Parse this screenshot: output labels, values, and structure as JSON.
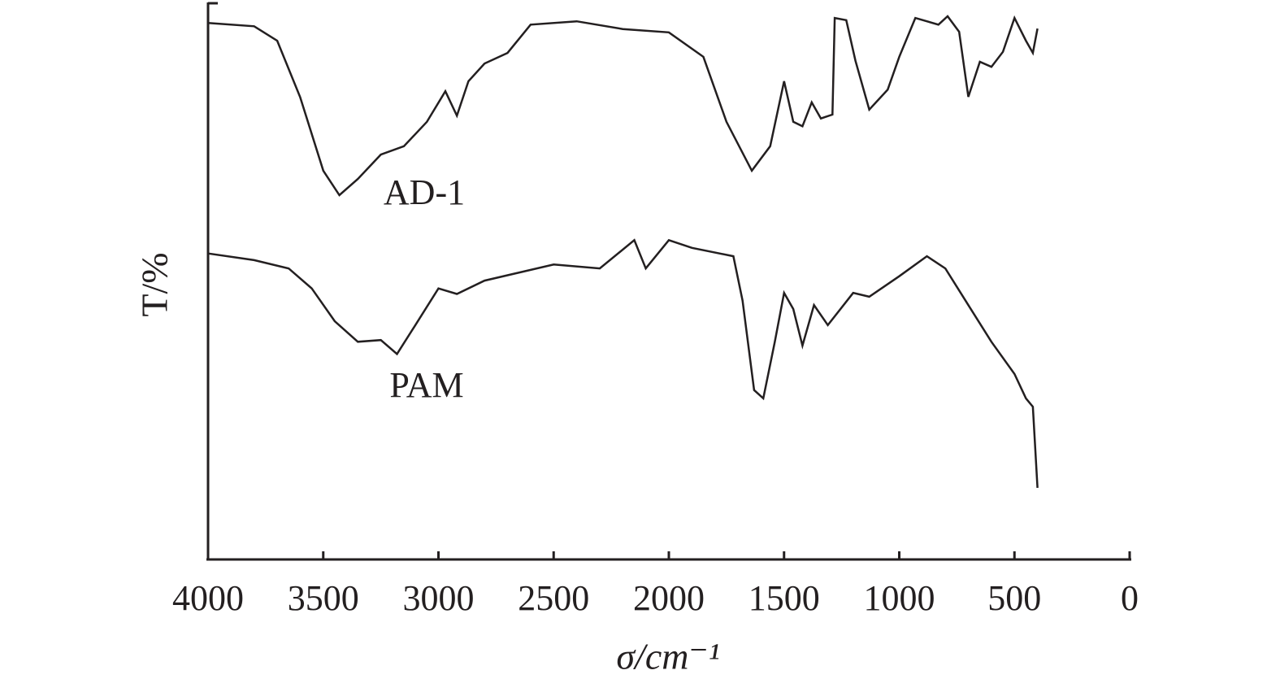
{
  "chart_data": {
    "type": "line",
    "x_label": "σ/cm⁻¹",
    "y_label": "T/%",
    "xlim": [
      4000,
      0
    ],
    "xticks": [
      4000,
      3500,
      3000,
      2500,
      2000,
      1500,
      1000,
      500,
      0
    ],
    "ylim": [
      0,
      100
    ],
    "annotations": [
      "AD-1",
      "PAM"
    ],
    "series": [
      {
        "name": "AD-1",
        "color": "#231f20",
        "x": [
          4000,
          3800,
          3700,
          3600,
          3500,
          3430,
          3350,
          3250,
          3150,
          3050,
          2970,
          2920,
          2870,
          2800,
          2700,
          2600,
          2400,
          2200,
          2000,
          1850,
          1750,
          1640,
          1560,
          1500,
          1460,
          1420,
          1380,
          1340,
          1290,
          1280,
          1230,
          1190,
          1130,
          1050,
          1000,
          930,
          830,
          790,
          740,
          700,
          650,
          600,
          550,
          500,
          450,
          420,
          400
        ],
        "values": [
          96.6,
          96.0,
          93.4,
          83.2,
          70.0,
          65.6,
          68.5,
          72.9,
          74.4,
          78.8,
          84.3,
          79.9,
          86.1,
          89.3,
          91.2,
          96.3,
          96.9,
          95.5,
          94.9,
          90.5,
          78.8,
          70.0,
          74.4,
          86.1,
          78.8,
          78.0,
          82.3,
          79.4,
          80.1,
          97.5,
          97.1,
          89.8,
          81.0,
          84.6,
          90.5,
          97.5,
          96.3,
          97.8,
          95.0,
          83.3,
          89.6,
          88.7,
          91.4,
          97.5,
          93.4,
          91.2,
          95.6
        ]
      },
      {
        "name": "PAM",
        "color": "#231f20",
        "x": [
          4000,
          3800,
          3650,
          3550,
          3450,
          3350,
          3250,
          3180,
          3100,
          3000,
          2920,
          2800,
          2500,
          2300,
          2150,
          2100,
          2000,
          1900,
          1720,
          1680,
          1630,
          1590,
          1540,
          1500,
          1460,
          1420,
          1370,
          1310,
          1200,
          1130,
          1000,
          880,
          800,
          700,
          600,
          500,
          450,
          420,
          400
        ],
        "values": [
          55.1,
          53.9,
          52.4,
          48.8,
          42.9,
          39.2,
          39.5,
          37.0,
          42.2,
          48.8,
          47.8,
          50.2,
          53.1,
          52.4,
          57.5,
          52.4,
          57.5,
          56.1,
          54.6,
          46.6,
          30.5,
          29.0,
          39.2,
          48.0,
          45.1,
          38.5,
          45.8,
          42.2,
          48.0,
          47.3,
          51.0,
          54.6,
          52.4,
          45.8,
          39.2,
          33.4,
          29.0,
          27.5,
          12.9
        ]
      }
    ]
  }
}
